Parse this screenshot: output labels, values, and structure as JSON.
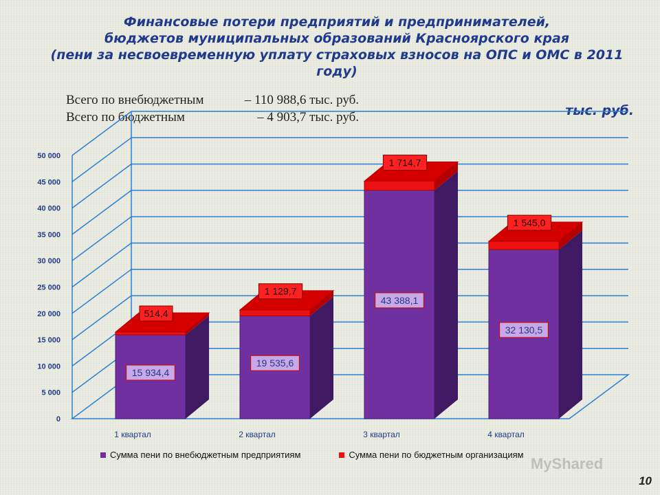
{
  "title_lines": [
    "Финансовые потери предприятий и предпринимателей,",
    "бюджетов муниципальных образований Красноярского края",
    "(пени за несвоевременную уплату страховых взносов на ОПС и ОМС в 2011",
    "году)"
  ],
  "totals": [
    {
      "label": "Всего по внебюджетным",
      "value": "– 110 988,6  тыс. руб."
    },
    {
      "label": "Всего по бюджетным",
      "value": "–    4 903,7  тыс. руб."
    }
  ],
  "unit": "тыс. руб.",
  "watermark": "MyShared",
  "slide_number": "10",
  "colors": {
    "purple": "#7030a0",
    "purple_side": "#3f1a62",
    "red": "#ee1111",
    "red_dark": "#b50000",
    "axis": "#2a7fd4",
    "label_text": "#1f3a8a"
  },
  "chart_data": {
    "type": "bar",
    "stacked": true,
    "categories": [
      "1 квартал",
      "2 квартал",
      "3 квартал",
      "4 квартал"
    ],
    "series": [
      {
        "name": "Сумма пени по внебюджетным предприятиям",
        "values": [
          15934.4,
          19535.6,
          43388.1,
          32130.5
        ],
        "labels": [
          "15 934,4",
          "19 535,6",
          "43 388,1",
          "32 130,5"
        ]
      },
      {
        "name": "Сумма пени по бюджетным организациям",
        "values": [
          514.4,
          1129.7,
          1714.7,
          1545.0
        ],
        "labels": [
          "514,4",
          "1 129,7",
          "1 714,7",
          "1 545,0"
        ]
      }
    ],
    "ylim": [
      0,
      50000
    ],
    "yticks": [
      0,
      5000,
      10000,
      15000,
      20000,
      25000,
      30000,
      35000,
      40000,
      45000,
      50000
    ],
    "ytick_labels": [
      "0",
      "5 000",
      "10 000",
      "15 000",
      "20 000",
      "25 000",
      "30 000",
      "35 000",
      "40 000",
      "45 000",
      "50 000"
    ],
    "grid": true,
    "legend": "bottom"
  }
}
